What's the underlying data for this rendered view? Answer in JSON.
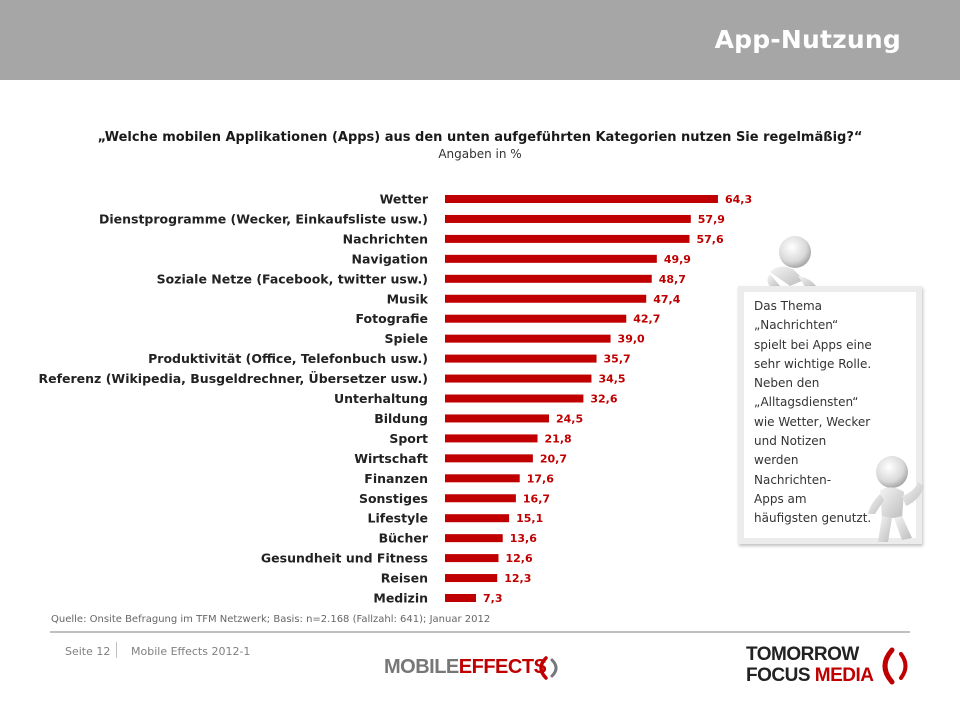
{
  "header": {
    "title": "App-Nutzung"
  },
  "chart_data": {
    "type": "bar",
    "orientation": "horizontal",
    "title": "„Welche mobilen Applikationen (Apps) aus den unten aufgeführten Kategorien nutzen Sie regelmäßig?“",
    "subtitle": "Angaben in %",
    "categories": [
      "Wetter",
      "Dienstprogramme (Wecker, Einkaufsliste usw.)",
      "Nachrichten",
      "Navigation",
      "Soziale Netze (Facebook, twitter usw.)",
      "Musik",
      "Fotografie",
      "Spiele",
      "Produktivität (Office, Telefonbuch usw.)",
      "Referenz (Wikipedia, Busgeldrechner, Übersetzer usw.)",
      "Unterhaltung",
      "Bildung",
      "Sport",
      "Wirtschaft",
      "Finanzen",
      "Sonstiges",
      "Lifestyle",
      "Bücher",
      "Gesundheit und Fitness",
      "Reisen",
      "Medizin"
    ],
    "values": [
      64.3,
      57.9,
      57.6,
      49.9,
      48.7,
      47.4,
      42.7,
      39.0,
      35.7,
      34.5,
      32.6,
      24.5,
      21.8,
      20.7,
      17.6,
      16.7,
      15.1,
      13.6,
      12.6,
      12.3,
      7.3
    ],
    "value_labels": [
      "64,3",
      "57,9",
      "57,6",
      "49,9",
      "48,7",
      "47,4",
      "42,7",
      "39,0",
      "35,7",
      "34,5",
      "32,6",
      "24,5",
      "21,8",
      "20,7",
      "17,6",
      "16,7",
      "15,1",
      "13,6",
      "12,6",
      "12,3",
      "7,3"
    ],
    "bar_color": "#c00000",
    "xlim": [
      0,
      70
    ],
    "grid": false,
    "legend": "none"
  },
  "note_board": {
    "lines": [
      "Das Thema",
      "„Nachrichten“",
      "spielt bei Apps eine",
      "sehr wichtige Rolle.",
      "Neben den",
      "„Alltagsdiensten“",
      "wie Wetter, Wecker",
      "und Notizen",
      "werden",
      "Nachrichten-",
      "Apps am",
      "häufigsten genutzt."
    ]
  },
  "footer": {
    "source": "Quelle: Onsite Befragung im TFM Netzwerk; Basis: n=2.168 (Fallzahl: 641); Januar 2012",
    "page": "Seite 12",
    "doc": "Mobile Effects 2012-1",
    "logo_mobile": "MOBILE",
    "logo_effects": "EFFECTS",
    "logo_tomorrow": "TOMORROW",
    "logo_focus": "FOCUS",
    "logo_media": "MEDIA"
  }
}
